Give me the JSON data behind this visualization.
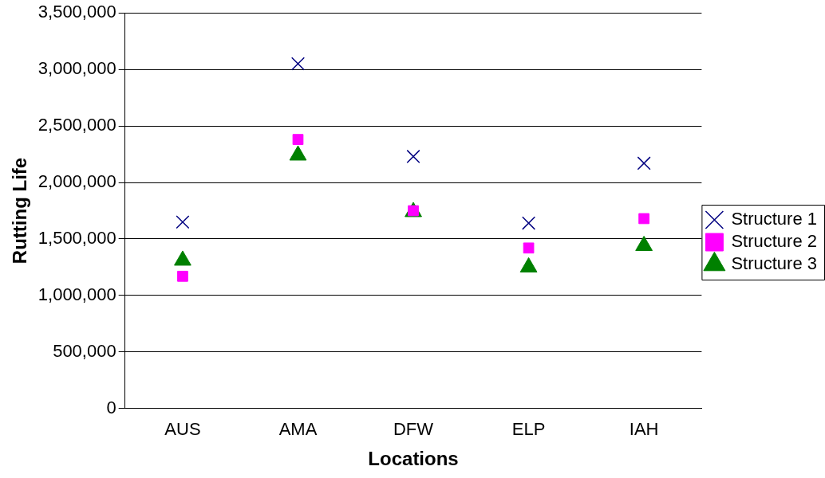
{
  "chart_data": {
    "type": "scatter",
    "xlabel": "Locations",
    "ylabel": "Rutting Life",
    "categories": [
      "AUS",
      "AMA",
      "DFW",
      "ELP",
      "IAH"
    ],
    "series": [
      {
        "name": "Structure 1",
        "color": "#000080",
        "marker": "cross",
        "values": [
          1650000,
          3050000,
          2230000,
          1640000,
          2170000
        ]
      },
      {
        "name": "Structure 2",
        "color": "#ff00ff",
        "marker": "square",
        "values": [
          1170000,
          2380000,
          1750000,
          1420000,
          1680000
        ]
      },
      {
        "name": "Structure 3",
        "color": "#008000",
        "marker": "triangle",
        "values": [
          1310000,
          2240000,
          1740000,
          1250000,
          1440000
        ]
      }
    ],
    "ylim": [
      0,
      3500000
    ],
    "yticks": [
      {
        "value": 0,
        "label": "0"
      },
      {
        "value": 500000,
        "label": "500,000"
      },
      {
        "value": 1000000,
        "label": "1,000,000"
      },
      {
        "value": 1500000,
        "label": "1,500,000"
      },
      {
        "value": 2000000,
        "label": "2,000,000"
      },
      {
        "value": 2500000,
        "label": "2,500,000"
      },
      {
        "value": 3000000,
        "label": "3,000,000"
      },
      {
        "value": 3500000,
        "label": "3,500,000"
      }
    ],
    "grid": "y",
    "legend": "right"
  }
}
